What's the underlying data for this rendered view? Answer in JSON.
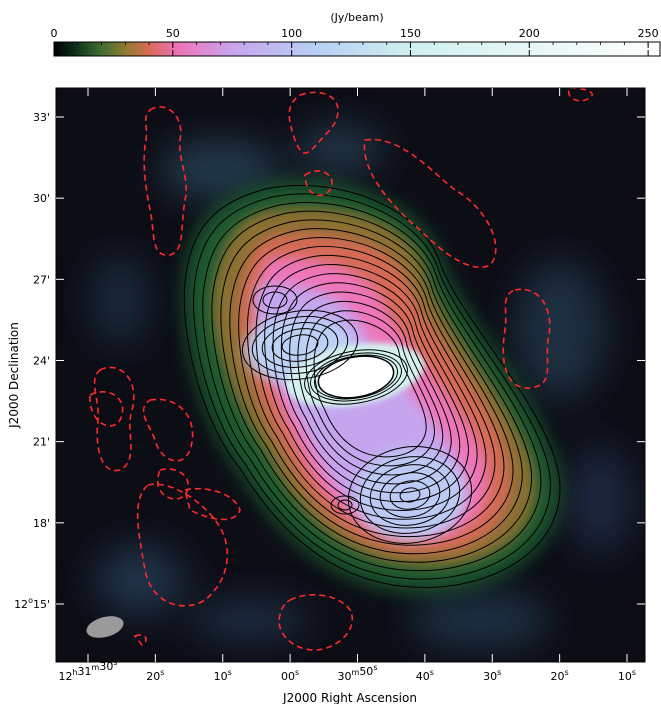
{
  "chart_data": {
    "type": "heatmap",
    "colorbar": {
      "label": "(Jy/beam)",
      "range": [
        0,
        255
      ],
      "ticks": [
        "0",
        "50",
        "100",
        "150",
        "200",
        "250"
      ],
      "tick_values": [
        0,
        50,
        100,
        150,
        200,
        250
      ],
      "colormap": [
        {
          "v": 0,
          "c": "#000000"
        },
        {
          "v": 8,
          "c": "#0c2a18"
        },
        {
          "v": 20,
          "c": "#3f6e32"
        },
        {
          "v": 30,
          "c": "#8f7a2e"
        },
        {
          "v": 40,
          "c": "#d96a57"
        },
        {
          "v": 52,
          "c": "#ee74b8"
        },
        {
          "v": 75,
          "c": "#c9a4ee"
        },
        {
          "v": 110,
          "c": "#b7cff5"
        },
        {
          "v": 150,
          "c": "#cff0ee"
        },
        {
          "v": 255,
          "c": "#ffffff"
        }
      ]
    },
    "xlabel": "J2000 Right Ascension",
    "ylabel": "J2000 Declination",
    "x_ticks": [
      {
        "hms": "12",
        "h": "h",
        "m": "31",
        "mu": "m",
        "s": "30",
        "su": "s"
      },
      {
        "s": "20",
        "su": "s"
      },
      {
        "s": "10",
        "su": "s"
      },
      {
        "s": "00",
        "su": "s"
      },
      {
        "m": "30",
        "mu": "m",
        "s": "50",
        "su": "s"
      },
      {
        "s": "40",
        "su": "s"
      },
      {
        "s": "30",
        "su": "s"
      },
      {
        "s": "20",
        "su": "s"
      },
      {
        "s": "10",
        "su": "s"
      }
    ],
    "y_ticks": [
      {
        "label": "33'"
      },
      {
        "label": "30'"
      },
      {
        "label": "27'"
      },
      {
        "label": "24'"
      },
      {
        "label": "21'"
      },
      {
        "label": "18'"
      },
      {
        "deg": "12",
        "du": "o",
        "label": "15'"
      }
    ],
    "features": {
      "core": "bright elongated nucleus at image center",
      "lobes": "extended diffuse emission with black contours",
      "negative_contours": "red dashed",
      "beam": "grey ellipse bottom-left"
    },
    "colors": {
      "background": "#0d0d16",
      "contour": "#000000",
      "negative_contour": "#ff2a2a",
      "beam": "#9a9a9a"
    }
  }
}
